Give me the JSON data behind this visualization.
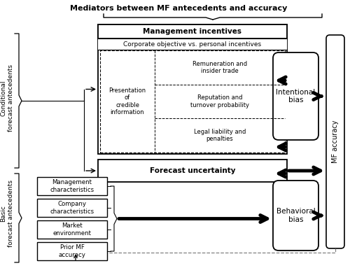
{
  "title": "Mediators between MF antecedents and accuracy",
  "bg_color": "#ffffff",
  "text_color": "#000000",
  "conditional_label": "Conditional\nforecast antecedents",
  "basic_label": "Basic\nforecast antecedents",
  "mf_accuracy_label": "MF accuracy",
  "management_incentives_label": "Management incentives",
  "corp_obj_label": "Corporate objective vs. personal incentives",
  "presentation_label": "Presentation\nof\ncredible\ninformation",
  "remuneration_label": "Remuneration and\ninsider trade",
  "reputation_label": "Reputation and\nturnover probability",
  "legal_label": "Legal liability and\npenalties",
  "forecast_uncertainty_label": "Forecast uncertainty",
  "intentional_bias_label": "Intentional\nbias",
  "behavioral_bias_label": "Behavioral\nbias",
  "basic_boxes": [
    "Management\ncharacteristics",
    "Company\ncharacteristics",
    "Market\nenvironment",
    "Prior MF\naccuracy"
  ]
}
